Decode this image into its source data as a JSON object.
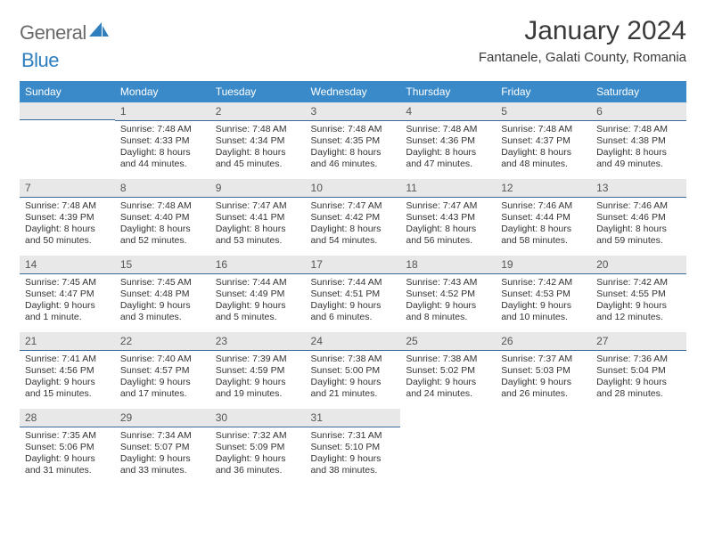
{
  "brand": {
    "part1": "General",
    "part2": "Blue"
  },
  "title": "January 2024",
  "location": "Fantanele, Galati County, Romania",
  "day_headers": [
    "Sunday",
    "Monday",
    "Tuesday",
    "Wednesday",
    "Thursday",
    "Friday",
    "Saturday"
  ],
  "colors": {
    "header_bg": "#3a8ac9",
    "header_text": "#ffffff",
    "daynum_bg": "#e8e8e8",
    "rule": "#3a6a9a",
    "body_text": "#333333",
    "title_text": "#3a3a3a",
    "logo_gray": "#6a6a6a",
    "logo_blue": "#2f7fbf"
  },
  "weeks": [
    [
      {
        "n": "",
        "sunrise": "",
        "sunset": "",
        "daylight": ""
      },
      {
        "n": "1",
        "sunrise": "Sunrise: 7:48 AM",
        "sunset": "Sunset: 4:33 PM",
        "daylight": "Daylight: 8 hours and 44 minutes."
      },
      {
        "n": "2",
        "sunrise": "Sunrise: 7:48 AM",
        "sunset": "Sunset: 4:34 PM",
        "daylight": "Daylight: 8 hours and 45 minutes."
      },
      {
        "n": "3",
        "sunrise": "Sunrise: 7:48 AM",
        "sunset": "Sunset: 4:35 PM",
        "daylight": "Daylight: 8 hours and 46 minutes."
      },
      {
        "n": "4",
        "sunrise": "Sunrise: 7:48 AM",
        "sunset": "Sunset: 4:36 PM",
        "daylight": "Daylight: 8 hours and 47 minutes."
      },
      {
        "n": "5",
        "sunrise": "Sunrise: 7:48 AM",
        "sunset": "Sunset: 4:37 PM",
        "daylight": "Daylight: 8 hours and 48 minutes."
      },
      {
        "n": "6",
        "sunrise": "Sunrise: 7:48 AM",
        "sunset": "Sunset: 4:38 PM",
        "daylight": "Daylight: 8 hours and 49 minutes."
      }
    ],
    [
      {
        "n": "7",
        "sunrise": "Sunrise: 7:48 AM",
        "sunset": "Sunset: 4:39 PM",
        "daylight": "Daylight: 8 hours and 50 minutes."
      },
      {
        "n": "8",
        "sunrise": "Sunrise: 7:48 AM",
        "sunset": "Sunset: 4:40 PM",
        "daylight": "Daylight: 8 hours and 52 minutes."
      },
      {
        "n": "9",
        "sunrise": "Sunrise: 7:47 AM",
        "sunset": "Sunset: 4:41 PM",
        "daylight": "Daylight: 8 hours and 53 minutes."
      },
      {
        "n": "10",
        "sunrise": "Sunrise: 7:47 AM",
        "sunset": "Sunset: 4:42 PM",
        "daylight": "Daylight: 8 hours and 54 minutes."
      },
      {
        "n": "11",
        "sunrise": "Sunrise: 7:47 AM",
        "sunset": "Sunset: 4:43 PM",
        "daylight": "Daylight: 8 hours and 56 minutes."
      },
      {
        "n": "12",
        "sunrise": "Sunrise: 7:46 AM",
        "sunset": "Sunset: 4:44 PM",
        "daylight": "Daylight: 8 hours and 58 minutes."
      },
      {
        "n": "13",
        "sunrise": "Sunrise: 7:46 AM",
        "sunset": "Sunset: 4:46 PM",
        "daylight": "Daylight: 8 hours and 59 minutes."
      }
    ],
    [
      {
        "n": "14",
        "sunrise": "Sunrise: 7:45 AM",
        "sunset": "Sunset: 4:47 PM",
        "daylight": "Daylight: 9 hours and 1 minute."
      },
      {
        "n": "15",
        "sunrise": "Sunrise: 7:45 AM",
        "sunset": "Sunset: 4:48 PM",
        "daylight": "Daylight: 9 hours and 3 minutes."
      },
      {
        "n": "16",
        "sunrise": "Sunrise: 7:44 AM",
        "sunset": "Sunset: 4:49 PM",
        "daylight": "Daylight: 9 hours and 5 minutes."
      },
      {
        "n": "17",
        "sunrise": "Sunrise: 7:44 AM",
        "sunset": "Sunset: 4:51 PM",
        "daylight": "Daylight: 9 hours and 6 minutes."
      },
      {
        "n": "18",
        "sunrise": "Sunrise: 7:43 AM",
        "sunset": "Sunset: 4:52 PM",
        "daylight": "Daylight: 9 hours and 8 minutes."
      },
      {
        "n": "19",
        "sunrise": "Sunrise: 7:42 AM",
        "sunset": "Sunset: 4:53 PM",
        "daylight": "Daylight: 9 hours and 10 minutes."
      },
      {
        "n": "20",
        "sunrise": "Sunrise: 7:42 AM",
        "sunset": "Sunset: 4:55 PM",
        "daylight": "Daylight: 9 hours and 12 minutes."
      }
    ],
    [
      {
        "n": "21",
        "sunrise": "Sunrise: 7:41 AM",
        "sunset": "Sunset: 4:56 PM",
        "daylight": "Daylight: 9 hours and 15 minutes."
      },
      {
        "n": "22",
        "sunrise": "Sunrise: 7:40 AM",
        "sunset": "Sunset: 4:57 PM",
        "daylight": "Daylight: 9 hours and 17 minutes."
      },
      {
        "n": "23",
        "sunrise": "Sunrise: 7:39 AM",
        "sunset": "Sunset: 4:59 PM",
        "daylight": "Daylight: 9 hours and 19 minutes."
      },
      {
        "n": "24",
        "sunrise": "Sunrise: 7:38 AM",
        "sunset": "Sunset: 5:00 PM",
        "daylight": "Daylight: 9 hours and 21 minutes."
      },
      {
        "n": "25",
        "sunrise": "Sunrise: 7:38 AM",
        "sunset": "Sunset: 5:02 PM",
        "daylight": "Daylight: 9 hours and 24 minutes."
      },
      {
        "n": "26",
        "sunrise": "Sunrise: 7:37 AM",
        "sunset": "Sunset: 5:03 PM",
        "daylight": "Daylight: 9 hours and 26 minutes."
      },
      {
        "n": "27",
        "sunrise": "Sunrise: 7:36 AM",
        "sunset": "Sunset: 5:04 PM",
        "daylight": "Daylight: 9 hours and 28 minutes."
      }
    ],
    [
      {
        "n": "28",
        "sunrise": "Sunrise: 7:35 AM",
        "sunset": "Sunset: 5:06 PM",
        "daylight": "Daylight: 9 hours and 31 minutes."
      },
      {
        "n": "29",
        "sunrise": "Sunrise: 7:34 AM",
        "sunset": "Sunset: 5:07 PM",
        "daylight": "Daylight: 9 hours and 33 minutes."
      },
      {
        "n": "30",
        "sunrise": "Sunrise: 7:32 AM",
        "sunset": "Sunset: 5:09 PM",
        "daylight": "Daylight: 9 hours and 36 minutes."
      },
      {
        "n": "31",
        "sunrise": "Sunrise: 7:31 AM",
        "sunset": "Sunset: 5:10 PM",
        "daylight": "Daylight: 9 hours and 38 minutes."
      },
      {
        "n": "",
        "sunrise": "",
        "sunset": "",
        "daylight": ""
      },
      {
        "n": "",
        "sunrise": "",
        "sunset": "",
        "daylight": ""
      },
      {
        "n": "",
        "sunrise": "",
        "sunset": "",
        "daylight": ""
      }
    ]
  ]
}
